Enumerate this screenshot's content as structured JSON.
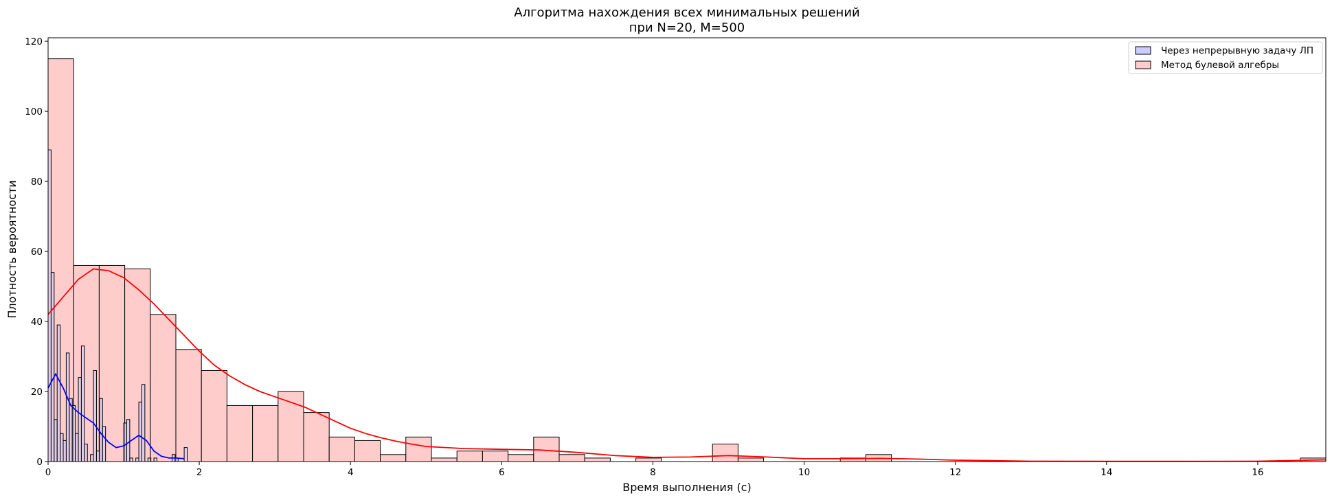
{
  "chart_data": {
    "type": "histogram",
    "title_line1": "Алгоритма нахождения всех минимальных решений",
    "title_line2": "при N=20, M=500",
    "xlabel": "Время выполнения (с)",
    "ylabel": "Плотность вероятности",
    "xlim": [
      0,
      16.9
    ],
    "ylim": [
      0,
      121
    ],
    "xticks": [
      0,
      2,
      4,
      6,
      8,
      10,
      12,
      14,
      16
    ],
    "yticks": [
      0,
      20,
      40,
      60,
      80,
      100,
      120
    ],
    "legend_position": "upper right",
    "series": [
      {
        "name": "Через непрерывную задачу ЛП",
        "fill": "#ccccff",
        "line_color": "#0000ff",
        "bin_width": 0.04,
        "bins": [
          {
            "x": 0.0,
            "count": 89
          },
          {
            "x": 0.04,
            "count": 54
          },
          {
            "x": 0.08,
            "count": 12
          },
          {
            "x": 0.12,
            "count": 39
          },
          {
            "x": 0.16,
            "count": 8
          },
          {
            "x": 0.2,
            "count": 6
          },
          {
            "x": 0.24,
            "count": 31
          },
          {
            "x": 0.28,
            "count": 18
          },
          {
            "x": 0.32,
            "count": 16
          },
          {
            "x": 0.36,
            "count": 8
          },
          {
            "x": 0.4,
            "count": 24
          },
          {
            "x": 0.44,
            "count": 33
          },
          {
            "x": 0.48,
            "count": 5
          },
          {
            "x": 0.52,
            "count": 0
          },
          {
            "x": 0.56,
            "count": 2
          },
          {
            "x": 0.6,
            "count": 26
          },
          {
            "x": 0.64,
            "count": 3
          },
          {
            "x": 0.68,
            "count": 18
          },
          {
            "x": 0.72,
            "count": 10
          },
          {
            "x": 0.76,
            "count": 0
          },
          {
            "x": 0.8,
            "count": 0
          },
          {
            "x": 0.84,
            "count": 0
          },
          {
            "x": 0.88,
            "count": 0
          },
          {
            "x": 0.92,
            "count": 0
          },
          {
            "x": 0.96,
            "count": 0
          },
          {
            "x": 1.0,
            "count": 11
          },
          {
            "x": 1.04,
            "count": 12
          },
          {
            "x": 1.08,
            "count": 1
          },
          {
            "x": 1.12,
            "count": 0
          },
          {
            "x": 1.16,
            "count": 1
          },
          {
            "x": 1.2,
            "count": 17
          },
          {
            "x": 1.24,
            "count": 22
          },
          {
            "x": 1.28,
            "count": 0
          },
          {
            "x": 1.32,
            "count": 1
          },
          {
            "x": 1.36,
            "count": 0
          },
          {
            "x": 1.4,
            "count": 1
          },
          {
            "x": 1.64,
            "count": 2
          },
          {
            "x": 1.68,
            "count": 1
          },
          {
            "x": 1.8,
            "count": 4
          }
        ],
        "kde": [
          [
            0.0,
            21
          ],
          [
            0.1,
            25
          ],
          [
            0.2,
            21
          ],
          [
            0.3,
            16
          ],
          [
            0.4,
            14
          ],
          [
            0.5,
            12.5
          ],
          [
            0.6,
            11
          ],
          [
            0.7,
            8
          ],
          [
            0.8,
            5.5
          ],
          [
            0.9,
            4
          ],
          [
            1.0,
            4.5
          ],
          [
            1.1,
            6
          ],
          [
            1.2,
            7.5
          ],
          [
            1.3,
            6
          ],
          [
            1.4,
            3
          ],
          [
            1.5,
            1.5
          ],
          [
            1.6,
            1
          ],
          [
            1.7,
            1
          ],
          [
            1.8,
            0.8
          ]
        ]
      },
      {
        "name": "Метод булевой алгебры",
        "fill": "#ffcccc",
        "line_color": "#ff0000",
        "bin_width": 0.338,
        "counts": [
          115,
          56,
          56,
          55,
          42,
          32,
          26,
          16,
          16,
          20,
          14,
          7,
          6,
          2,
          7,
          1,
          3,
          3,
          2,
          7,
          2,
          1,
          0,
          1,
          0,
          0,
          5,
          1,
          0,
          0,
          0,
          1,
          2,
          0,
          0,
          0,
          0,
          0,
          0,
          0,
          0,
          0,
          0,
          0,
          0,
          0,
          0,
          0,
          0,
          1
        ],
        "kde": [
          [
            0.0,
            42
          ],
          [
            0.2,
            47
          ],
          [
            0.4,
            52
          ],
          [
            0.6,
            55
          ],
          [
            0.8,
            54.5
          ],
          [
            1.0,
            52.5
          ],
          [
            1.2,
            49
          ],
          [
            1.4,
            45
          ],
          [
            1.6,
            40.5
          ],
          [
            1.8,
            36
          ],
          [
            2.0,
            31.5
          ],
          [
            2.2,
            27.5
          ],
          [
            2.4,
            24.5
          ],
          [
            2.6,
            22
          ],
          [
            2.8,
            20
          ],
          [
            3.0,
            18.5
          ],
          [
            3.2,
            17
          ],
          [
            3.4,
            15.5
          ],
          [
            3.6,
            13.5
          ],
          [
            3.8,
            11.5
          ],
          [
            4.0,
            9.5
          ],
          [
            4.2,
            8
          ],
          [
            4.4,
            6.8
          ],
          [
            4.6,
            5.8
          ],
          [
            4.8,
            5
          ],
          [
            5.0,
            4.3
          ],
          [
            5.5,
            3.7
          ],
          [
            6.0,
            3.5
          ],
          [
            6.5,
            3.3
          ],
          [
            7.0,
            2.6
          ],
          [
            7.5,
            1.7
          ],
          [
            8.0,
            1.2
          ],
          [
            8.5,
            1.3
          ],
          [
            9.0,
            1.7
          ],
          [
            9.5,
            1.3
          ],
          [
            10.0,
            0.8
          ],
          [
            10.5,
            0.8
          ],
          [
            11.0,
            0.9
          ],
          [
            11.5,
            0.7
          ],
          [
            12.0,
            0.4
          ],
          [
            13.0,
            0.1
          ],
          [
            14.0,
            0.05
          ],
          [
            15.0,
            0.05
          ],
          [
            16.0,
            0.1
          ],
          [
            16.9,
            0.5
          ]
        ]
      }
    ]
  }
}
